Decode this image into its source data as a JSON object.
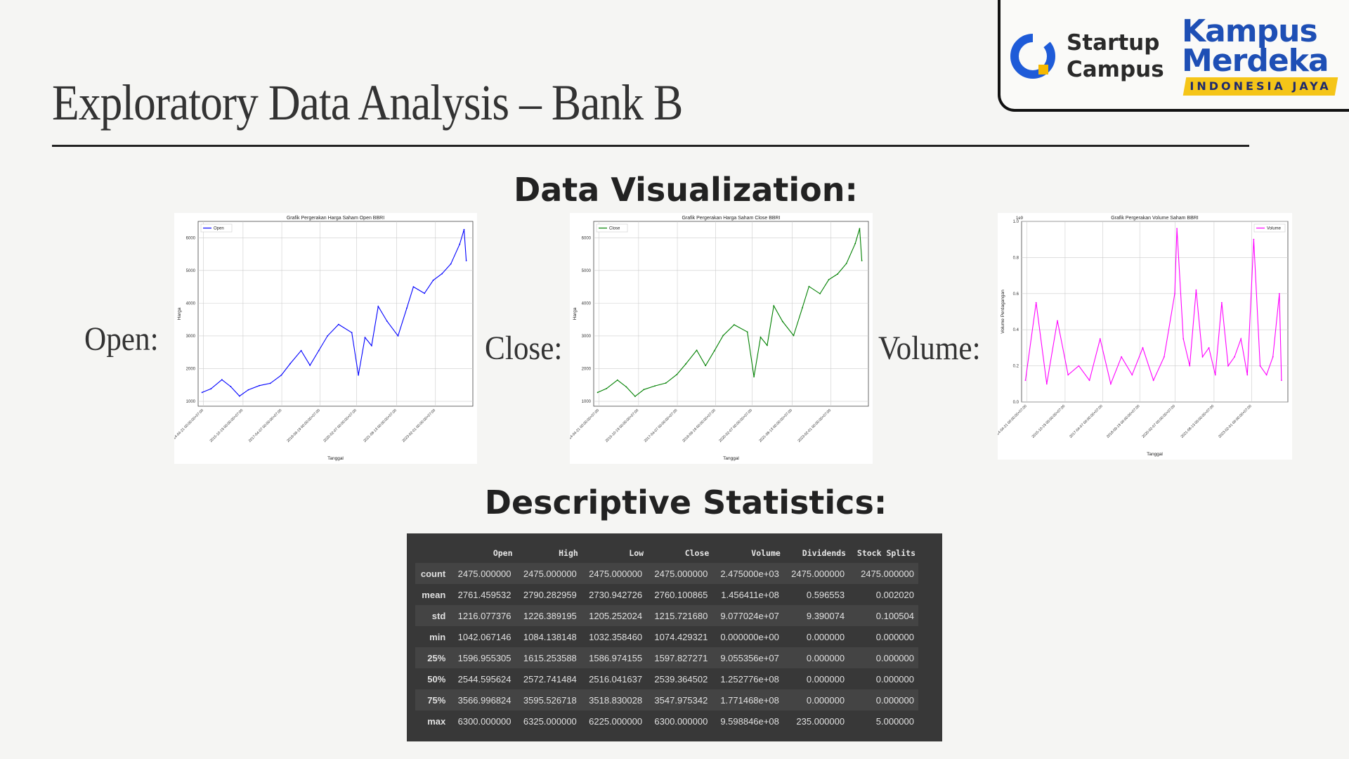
{
  "slide": {
    "title": "Exploratory Data Analysis – Bank B"
  },
  "logos": {
    "startup_campus_line1": "Startup",
    "startup_campus_line2": "Campus",
    "kampus_merdeka_line1": "Kampus",
    "kampus_merdeka_line2": "Merdeka",
    "kampus_merdeka_tagline": "INDONESIA JAYA"
  },
  "headings": {
    "visualization": "Data Visualization:",
    "statistics": "Descriptive Statistics:"
  },
  "labels": {
    "open": "Open:",
    "close": "Close:",
    "volume": "Volume:"
  },
  "colors": {
    "open": "#0000ff",
    "close": "#008000",
    "volume": "#ff00ff",
    "table_bg": "#383838",
    "brand_blue": "#1e4fb5",
    "brand_yellow": "#f5c518"
  },
  "chart_data": [
    {
      "type": "line",
      "title": "Grafik Pergerakan Harga Saham Open BBRI",
      "xlabel": "Tanggal",
      "ylabel": "Harga",
      "xticks": [
        "2014-04-21 00:00:00+07:00",
        "2015-10-19 00:00:00+07:00",
        "2017-04-07 00:00:00+07:00",
        "2018-09-19 00:00:00+07:00",
        "2020-02-07 00:00:00+07:00",
        "2021-08-13 00:00:00+07:00",
        "2023-02-01 00:00:00+07:00"
      ],
      "yticks": [
        1000,
        2000,
        3000,
        4000,
        5000,
        6000
      ],
      "ylim": [
        850,
        6500
      ],
      "grid": true,
      "legend_position": "upper left",
      "series": [
        {
          "name": "Open",
          "x": [
            "2014-04",
            "2014-08",
            "2015-01",
            "2015-05",
            "2015-09",
            "2016-01",
            "2016-06",
            "2016-11",
            "2017-04",
            "2017-08",
            "2018-01",
            "2018-05",
            "2018-09",
            "2019-01",
            "2019-06",
            "2019-12",
            "2020-03",
            "2020-06",
            "2020-09",
            "2020-12",
            "2021-04",
            "2021-09",
            "2022-01",
            "2022-04",
            "2022-09",
            "2023-01",
            "2023-05",
            "2023-09",
            "2024-01",
            "2024-03",
            "2024-04"
          ],
          "values": [
            1270,
            1380,
            1660,
            1450,
            1160,
            1350,
            1480,
            1550,
            1800,
            2150,
            2550,
            2100,
            2550,
            3000,
            3350,
            3100,
            1800,
            2950,
            2700,
            3900,
            3450,
            3000,
            3850,
            4500,
            4300,
            4700,
            4900,
            5200,
            5800,
            6250,
            5300
          ]
        }
      ]
    },
    {
      "type": "line",
      "title": "Grafik Pergerakan Harga Saham Close BBRI",
      "xlabel": "Tanggal",
      "ylabel": "Harga",
      "xticks": [
        "2014-04-21 00:00:00+07:00",
        "2015-10-19 00:00:00+07:00",
        "2017-04-07 00:00:00+07:00",
        "2018-09-19 00:00:00+07:00",
        "2020-02-07 00:00:00+07:00",
        "2021-08-13 00:00:00+07:00",
        "2023-02-01 00:00:00+07:00"
      ],
      "yticks": [
        1000,
        2000,
        3000,
        4000,
        5000,
        6000
      ],
      "ylim": [
        850,
        6500
      ],
      "grid": true,
      "legend_position": "upper left",
      "series": [
        {
          "name": "Close",
          "x": [
            "2014-04",
            "2014-08",
            "2015-01",
            "2015-05",
            "2015-09",
            "2016-01",
            "2016-06",
            "2016-11",
            "2017-04",
            "2017-08",
            "2018-01",
            "2018-05",
            "2018-09",
            "2019-01",
            "2019-06",
            "2019-12",
            "2020-03",
            "2020-06",
            "2020-09",
            "2020-12",
            "2021-04",
            "2021-09",
            "2022-01",
            "2022-04",
            "2022-09",
            "2023-01",
            "2023-05",
            "2023-09",
            "2024-01",
            "2024-03",
            "2024-04"
          ],
          "values": [
            1270,
            1390,
            1650,
            1440,
            1150,
            1360,
            1470,
            1560,
            1820,
            2140,
            2560,
            2090,
            2540,
            3010,
            3340,
            3120,
            1750,
            2960,
            2710,
            3920,
            3440,
            3010,
            3860,
            4510,
            4290,
            4720,
            4890,
            5210,
            5820,
            6280,
            5300
          ]
        }
      ]
    },
    {
      "type": "line",
      "title": "Grafik Pergerakan Volume Saham BBRI",
      "xlabel": "Tanggal",
      "ylabel": "Volume Perdagangan",
      "y_scale_label": "1e9",
      "xticks": [
        "2014-04-21 00:00:00+07:00",
        "2015-10-19 00:00:00+07:00",
        "2017-04-07 00:00:00+07:00",
        "2018-09-19 00:00:00+07:00",
        "2020-02-07 00:00:00+07:00",
        "2021-08-13 00:00:00+07:00",
        "2023-02-01 00:00:00+07:00"
      ],
      "yticks": [
        "0.0",
        "0.2",
        "0.4",
        "0.6",
        "0.8",
        "1.0"
      ],
      "ylim": [
        0,
        1.0
      ],
      "grid": true,
      "legend_position": "upper right",
      "series": [
        {
          "name": "Volume",
          "x": [
            "2014-04",
            "2014-09",
            "2015-02",
            "2015-07",
            "2015-12",
            "2016-05",
            "2016-10",
            "2017-03",
            "2017-08",
            "2018-01",
            "2018-06",
            "2018-11",
            "2019-04",
            "2019-09",
            "2020-02",
            "2020-03",
            "2020-06",
            "2020-09",
            "2020-12",
            "2021-03",
            "2021-06",
            "2021-09",
            "2021-12",
            "2022-03",
            "2022-06",
            "2022-09",
            "2022-12",
            "2023-03",
            "2023-06",
            "2023-09",
            "2023-12",
            "2024-03",
            "2024-04"
          ],
          "values": [
            0.12,
            0.55,
            0.1,
            0.45,
            0.15,
            0.2,
            0.12,
            0.35,
            0.1,
            0.25,
            0.15,
            0.3,
            0.12,
            0.25,
            0.6,
            0.96,
            0.35,
            0.2,
            0.62,
            0.25,
            0.3,
            0.15,
            0.55,
            0.2,
            0.25,
            0.35,
            0.15,
            0.9,
            0.2,
            0.15,
            0.25,
            0.6,
            0.12
          ]
        }
      ]
    }
  ],
  "stats_table": {
    "columns": [
      "",
      "Open",
      "High",
      "Low",
      "Close",
      "Volume",
      "Dividends",
      "Stock Splits"
    ],
    "rows": [
      [
        "count",
        "2475.000000",
        "2475.000000",
        "2475.000000",
        "2475.000000",
        "2.475000e+03",
        "2475.000000",
        "2475.000000"
      ],
      [
        "mean",
        "2761.459532",
        "2790.282959",
        "2730.942726",
        "2760.100865",
        "1.456411e+08",
        "0.596553",
        "0.002020"
      ],
      [
        "std",
        "1216.077376",
        "1226.389195",
        "1205.252024",
        "1215.721680",
        "9.077024e+07",
        "9.390074",
        "0.100504"
      ],
      [
        "min",
        "1042.067146",
        "1084.138148",
        "1032.358460",
        "1074.429321",
        "0.000000e+00",
        "0.000000",
        "0.000000"
      ],
      [
        "25%",
        "1596.955305",
        "1615.253588",
        "1586.974155",
        "1597.827271",
        "9.055356e+07",
        "0.000000",
        "0.000000"
      ],
      [
        "50%",
        "2544.595624",
        "2572.741484",
        "2516.041637",
        "2539.364502",
        "1.252776e+08",
        "0.000000",
        "0.000000"
      ],
      [
        "75%",
        "3566.996824",
        "3595.526718",
        "3518.830028",
        "3547.975342",
        "1.771468e+08",
        "0.000000",
        "0.000000"
      ],
      [
        "max",
        "6300.000000",
        "6325.000000",
        "6225.000000",
        "6300.000000",
        "9.598846e+08",
        "235.000000",
        "5.000000"
      ]
    ]
  }
}
